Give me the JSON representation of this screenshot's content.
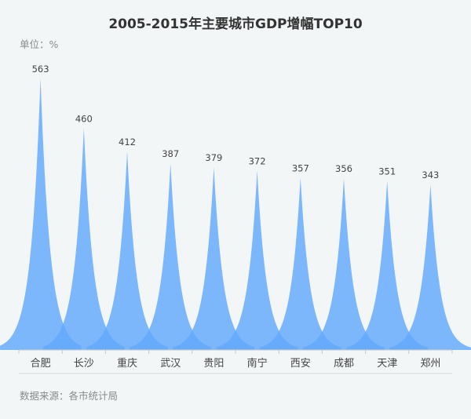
{
  "chart_data": {
    "type": "area",
    "title": "2005-2015年主要城市GDP增幅TOP10",
    "unit_label": "单位：%",
    "categories": [
      "合肥",
      "长沙",
      "重庆",
      "武汉",
      "贵阳",
      "南宁",
      "西安",
      "成都",
      "天津",
      "郑州"
    ],
    "values": [
      563,
      460,
      412,
      387,
      379,
      372,
      357,
      356,
      351,
      343
    ],
    "xlabel": "",
    "ylabel": "",
    "ylim": [
      0,
      600
    ],
    "grid": false,
    "legend": "none",
    "source": "数据来源：各市统计局",
    "colors": {
      "fill": "#63a8fb",
      "text": "#444444",
      "axis": "#c8c8c8"
    }
  }
}
